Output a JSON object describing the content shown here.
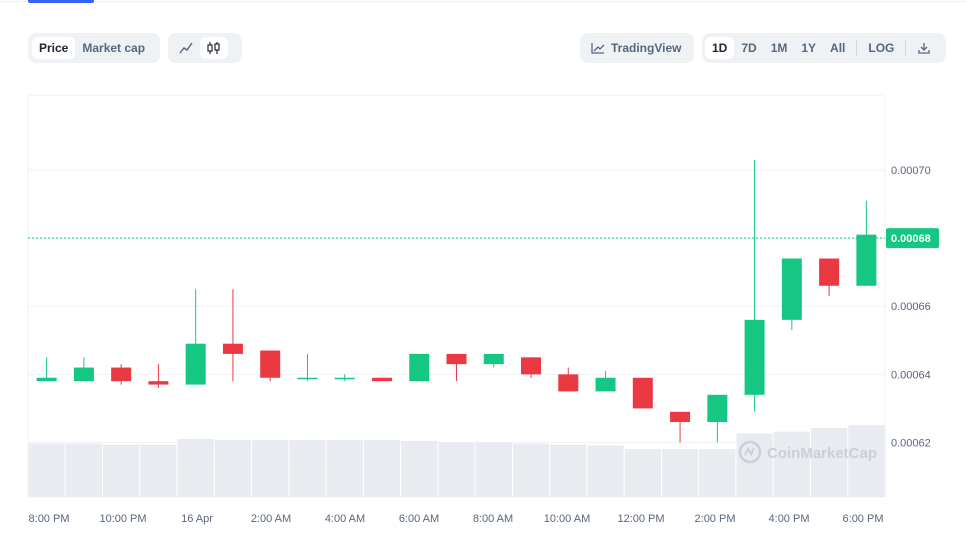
{
  "toolbar_left": {
    "tabs": [
      {
        "label": "Price",
        "active": true
      },
      {
        "label": "Market cap",
        "active": false
      }
    ],
    "chart_types": [
      {
        "icon": "line-chart-icon",
        "active": false
      },
      {
        "icon": "candlestick-icon",
        "active": true
      }
    ]
  },
  "toolbar_right": {
    "tradingview_label": "TradingView",
    "ranges": [
      {
        "label": "1D",
        "active": true
      },
      {
        "label": "7D",
        "active": false
      },
      {
        "label": "1M",
        "active": false
      },
      {
        "label": "1Y",
        "active": false
      },
      {
        "label": "All",
        "active": false
      }
    ],
    "log_label": "LOG",
    "download_icon": "download-icon"
  },
  "watermark": "CoinMarketCap",
  "colors": {
    "up": "#16c784",
    "down": "#ea3943",
    "grid": "#eff2f5",
    "volume": "#e8ebef",
    "axis_text": "#58667e"
  },
  "chart_data": {
    "type": "candlestick",
    "current_price": 0.00068,
    "current_price_label": "0.00068",
    "ylim": [
      0.000604,
      0.000722
    ],
    "y_ticks": [
      "0.00062",
      "0.00064",
      "0.00066",
      "0.00068",
      "0.00070"
    ],
    "x_ticks": [
      "8:00 PM",
      "10:00 PM",
      "16 Apr",
      "2:00 AM",
      "4:00 AM",
      "6:00 AM",
      "8:00 AM",
      "10:00 AM",
      "12:00 PM",
      "2:00 PM",
      "4:00 PM",
      "6:00 PM"
    ],
    "candles": [
      {
        "o": 0.000638,
        "c": 0.000639,
        "h": 0.000645,
        "l": 0.000638
      },
      {
        "o": 0.000638,
        "c": 0.000642,
        "h": 0.000645,
        "l": 0.000638
      },
      {
        "o": 0.000642,
        "c": 0.000638,
        "h": 0.000643,
        "l": 0.000637
      },
      {
        "o": 0.000638,
        "c": 0.000637,
        "h": 0.000643,
        "l": 0.000636
      },
      {
        "o": 0.000637,
        "c": 0.000649,
        "h": 0.000665,
        "l": 0.000637
      },
      {
        "o": 0.000649,
        "c": 0.000646,
        "h": 0.000665,
        "l": 0.000638
      },
      {
        "o": 0.000647,
        "c": 0.000639,
        "h": 0.000647,
        "l": 0.000638
      },
      {
        "o": 0.000639,
        "c": 0.000639,
        "h": 0.000646,
        "l": 0.000638
      },
      {
        "o": 0.000639,
        "c": 0.000639,
        "h": 0.00064,
        "l": 0.000638
      },
      {
        "o": 0.000639,
        "c": 0.000638,
        "h": 0.000639,
        "l": 0.000638
      },
      {
        "o": 0.000638,
        "c": 0.000646,
        "h": 0.000646,
        "l": 0.000638
      },
      {
        "o": 0.000646,
        "c": 0.000643,
        "h": 0.000646,
        "l": 0.000638
      },
      {
        "o": 0.000643,
        "c": 0.000646,
        "h": 0.000646,
        "l": 0.000642
      },
      {
        "o": 0.000645,
        "c": 0.00064,
        "h": 0.000645,
        "l": 0.000639
      },
      {
        "o": 0.00064,
        "c": 0.000635,
        "h": 0.000642,
        "l": 0.000635
      },
      {
        "o": 0.000635,
        "c": 0.000639,
        "h": 0.000641,
        "l": 0.000635
      },
      {
        "o": 0.000639,
        "c": 0.00063,
        "h": 0.000639,
        "l": 0.00063
      },
      {
        "o": 0.000629,
        "c": 0.000626,
        "h": 0.000629,
        "l": 0.00062
      },
      {
        "o": 0.000626,
        "c": 0.000634,
        "h": 0.000634,
        "l": 0.00062
      },
      {
        "o": 0.000634,
        "c": 0.000656,
        "h": 0.000703,
        "l": 0.000629
      },
      {
        "o": 0.000656,
        "c": 0.000674,
        "h": 0.000674,
        "l": 0.000653
      },
      {
        "o": 0.000674,
        "c": 0.000666,
        "h": 0.000674,
        "l": 0.000663
      },
      {
        "o": 0.000666,
        "c": 0.000681,
        "h": 0.000691,
        "l": 0.000666
      }
    ],
    "volumes": [
      0.58,
      0.58,
      0.57,
      0.57,
      0.63,
      0.62,
      0.62,
      0.62,
      0.62,
      0.62,
      0.61,
      0.59,
      0.59,
      0.58,
      0.57,
      0.56,
      0.52,
      0.52,
      0.52,
      0.69,
      0.71,
      0.75,
      0.78
    ]
  }
}
